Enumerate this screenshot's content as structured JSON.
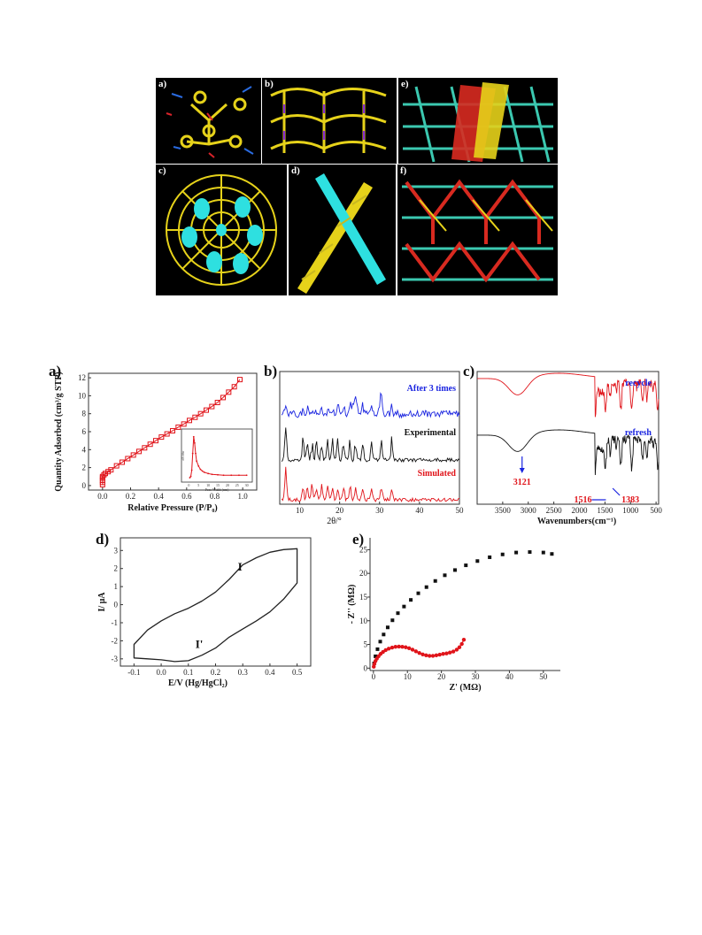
{
  "structure_figure": {
    "panels": [
      {
        "label": "a)"
      },
      {
        "label": "b)"
      },
      {
        "label": "e)"
      },
      {
        "label": "c)"
      },
      {
        "label": "d)"
      },
      {
        "label": "f)"
      }
    ]
  },
  "chart_data": [
    {
      "panel": "a)",
      "type": "scatter",
      "xlabel": "Relative Pressure (P/P₀)",
      "ylabel": "Quantity Adsorbed (cm³/g STP)",
      "xlim": [
        -0.1,
        1.1
      ],
      "ylim": [
        -0.5,
        12.5
      ],
      "xticks": [
        "0.0",
        "0.2",
        "0.4",
        "0.6",
        "0.8",
        "1.0"
      ],
      "yticks": [
        "0",
        "2",
        "4",
        "6",
        "8",
        "10",
        "12"
      ],
      "series": [
        {
          "x": [
            0.0,
            0.0,
            0.0,
            0.0,
            0.0,
            0.01,
            0.02,
            0.04,
            0.06,
            0.1,
            0.14,
            0.18,
            0.22,
            0.26,
            0.3,
            0.34,
            0.38,
            0.42,
            0.46,
            0.5,
            0.54,
            0.58,
            0.62,
            0.66,
            0.7,
            0.74,
            0.78,
            0.82,
            0.86,
            0.9,
            0.94,
            0.98
          ],
          "y": [
            0.1,
            0.35,
            0.6,
            0.85,
            1.0,
            1.2,
            1.35,
            1.55,
            1.75,
            2.2,
            2.6,
            3.0,
            3.4,
            3.8,
            4.2,
            4.6,
            5.0,
            5.4,
            5.75,
            6.1,
            6.5,
            6.85,
            7.25,
            7.6,
            8.0,
            8.4,
            8.8,
            9.25,
            9.8,
            10.4,
            11.0,
            11.8
          ]
        }
      ],
      "grid": false,
      "inset": {
        "type": "line",
        "xlabel": "Pore Width (nm)",
        "ylabel": "dV/dw",
        "xlim": [
          -2,
          32
        ],
        "xticks": [
          "0",
          "5",
          "10",
          "15",
          "20",
          "25",
          "30"
        ],
        "series": [
          {
            "x": [
              0.5,
              1,
              1.5,
              2,
              2.5,
              3,
              3.5,
              4,
              5,
              6,
              7,
              8,
              10,
              12,
              15,
              18,
              22,
              26,
              30
            ],
            "y": [
              0.02,
              0.05,
              0.2,
              0.6,
              1.0,
              0.85,
              0.6,
              0.42,
              0.3,
              0.22,
              0.18,
              0.15,
              0.12,
              0.1,
              0.09,
              0.08,
              0.08,
              0.08,
              0.08
            ]
          }
        ]
      }
    },
    {
      "panel": "b)",
      "type": "line",
      "xlabel": "2θ/°",
      "xlim": [
        5,
        50
      ],
      "xticks": [
        "10",
        "20",
        "30",
        "40",
        "50"
      ],
      "series": [
        {
          "name": "After 3 times",
          "color": "#1a24e0"
        },
        {
          "name": "Experimental",
          "color": "#111111"
        },
        {
          "name": "Simulated",
          "color": "#e0141a"
        }
      ],
      "peaks": [
        6.5,
        10.8,
        11.9,
        13.1,
        14.2,
        15.5,
        17.0,
        18.2,
        19.5,
        21.0,
        22.6,
        24.0,
        25.8,
        28.0,
        30.5,
        33.0
      ]
    },
    {
      "panel": "c)",
      "type": "line",
      "xlabel": "Wavenumbers(cm⁻¹)",
      "xlim": [
        4000,
        450
      ],
      "xticks": [
        "3500",
        "3000",
        "2500",
        "2000",
        "1500",
        "1000",
        "500"
      ],
      "series": [
        {
          "name": "recycle",
          "color": "#e0141a"
        },
        {
          "name": "refresh",
          "color": "#111111"
        }
      ],
      "annotations": [
        "3121",
        "1516",
        "1383"
      ]
    },
    {
      "panel": "d)",
      "type": "line",
      "xlabel": "E/V (Hg/HgCl₂)",
      "ylabel": "I/ μA",
      "xlim": [
        -0.15,
        0.55
      ],
      "ylim": [
        -3.4,
        3.7
      ],
      "xticks": [
        "-0.1",
        "0.0",
        "0.1",
        "0.2",
        "0.3",
        "0.4",
        "0.5"
      ],
      "yticks": [
        "-3",
        "-2",
        "-1",
        "0",
        "1",
        "2",
        "3"
      ],
      "peak_labels": [
        "I",
        "I'"
      ],
      "series": [
        {
          "x": [
            -0.1,
            -0.05,
            0.0,
            0.05,
            0.1,
            0.15,
            0.2,
            0.25,
            0.3,
            0.35,
            0.4,
            0.45,
            0.5,
            0.5,
            0.45,
            0.4,
            0.35,
            0.3,
            0.25,
            0.2,
            0.15,
            0.1,
            0.05,
            0.0,
            -0.05,
            -0.1,
            -0.1
          ],
          "y": [
            -2.2,
            -1.4,
            -0.9,
            -0.5,
            -0.2,
            0.2,
            0.7,
            1.4,
            2.2,
            2.6,
            2.9,
            3.05,
            3.1,
            1.2,
            0.3,
            -0.4,
            -0.9,
            -1.35,
            -1.8,
            -2.4,
            -2.8,
            -3.1,
            -3.15,
            -3.05,
            -3.0,
            -2.95,
            -2.2
          ]
        }
      ]
    },
    {
      "panel": "e)",
      "type": "scatter",
      "xlabel": "Z' (MΩ)",
      "ylabel": "- Z'' (MΩ)",
      "xlim": [
        -1,
        55
      ],
      "ylim": [
        -0.5,
        27.5
      ],
      "xticks": [
        "0",
        "10",
        "20",
        "30",
        "40",
        "50"
      ],
      "yticks": [
        "0",
        "5",
        "10",
        "15",
        "20",
        "25"
      ],
      "series": [
        {
          "color": "#111111",
          "x": [
            0.2,
            0.6,
            1.2,
            2.0,
            3.0,
            4.2,
            5.6,
            7.2,
            9.0,
            11.0,
            13.2,
            15.6,
            18.2,
            21.0,
            24.0,
            27.2,
            30.6,
            34.2,
            38.0,
            42.0,
            46.0,
            50.0,
            52.5
          ],
          "y": [
            1.0,
            2.5,
            4.0,
            5.6,
            7.1,
            8.6,
            10.1,
            11.6,
            13.0,
            14.4,
            15.8,
            17.1,
            18.4,
            19.6,
            20.7,
            21.7,
            22.6,
            23.4,
            24.0,
            24.4,
            24.5,
            24.4,
            24.1
          ]
        },
        {
          "color": "#e0141a",
          "x": [
            0.1,
            0.3,
            0.6,
            1.0,
            1.5,
            2.1,
            2.8,
            3.6,
            4.5,
            5.5,
            6.5,
            7.5,
            8.5,
            9.5,
            10.5,
            11.5,
            12.5,
            13.5,
            14.5,
            15.5,
            16.5,
            17.5,
            18.5,
            19.5,
            20.5,
            21.5,
            22.5,
            23.5,
            24.5,
            25.3,
            26.0,
            26.6
          ],
          "y": [
            0.3,
            0.9,
            1.5,
            2.0,
            2.5,
            3.0,
            3.4,
            3.8,
            4.1,
            4.35,
            4.5,
            4.55,
            4.5,
            4.4,
            4.2,
            3.9,
            3.55,
            3.2,
            2.9,
            2.7,
            2.6,
            2.6,
            2.7,
            2.85,
            3.0,
            3.1,
            3.3,
            3.5,
            3.9,
            4.4,
            5.1,
            6.0
          ]
        }
      ]
    }
  ]
}
